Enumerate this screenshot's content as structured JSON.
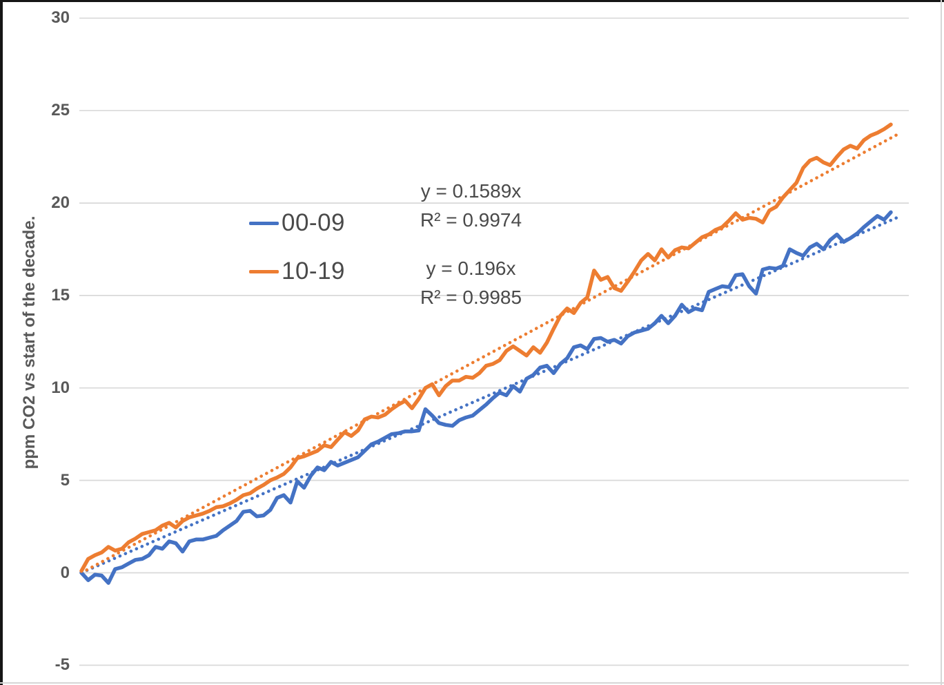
{
  "chart_data": {
    "type": "line",
    "title": "",
    "y_axis": {
      "label": "ppm CO2 vs start of the decade.",
      "ticks": [
        30,
        25,
        20,
        15,
        10,
        5,
        0,
        -5
      ],
      "min": -5,
      "max": 30,
      "grid": true
    },
    "x_axis": {
      "label": "",
      "min": 0,
      "max": 120,
      "tick_labels_shown": false
    },
    "legend_position": "inside-upper-left",
    "series": [
      {
        "name": "00-09",
        "color": "#4472C4",
        "line_style": "solid",
        "values": [
          0,
          -0.4,
          -0.1,
          -0.15,
          -0.55,
          0.2,
          0.3,
          0.5,
          0.7,
          0.75,
          0.95,
          1.4,
          1.3,
          1.7,
          1.6,
          1.15,
          1.7,
          1.8,
          1.8,
          1.9,
          2.0,
          2.3,
          2.55,
          2.8,
          3.3,
          3.35,
          3.05,
          3.1,
          3.4,
          4.05,
          4.2,
          3.8,
          4.95,
          4.6,
          5.25,
          5.7,
          5.55,
          6.0,
          5.8,
          5.95,
          6.1,
          6.25,
          6.6,
          6.95,
          7.1,
          7.3,
          7.5,
          7.55,
          7.65,
          7.65,
          7.7,
          8.85,
          8.5,
          8.1,
          8.0,
          7.95,
          8.25,
          8.4,
          8.5,
          8.8,
          9.1,
          9.45,
          9.75,
          9.6,
          10.1,
          9.8,
          10.5,
          10.7,
          11.1,
          11.2,
          10.8,
          11.3,
          11.6,
          12.2,
          12.3,
          12.1,
          12.65,
          12.7,
          12.5,
          12.6,
          12.4,
          12.8,
          13.0,
          13.1,
          13.2,
          13.5,
          13.9,
          13.5,
          13.9,
          14.5,
          14.1,
          14.3,
          14.2,
          15.2,
          15.35,
          15.5,
          15.45,
          16.1,
          16.15,
          15.5,
          15.1,
          16.4,
          16.5,
          16.45,
          16.6,
          17.5,
          17.3,
          17.15,
          17.6,
          17.8,
          17.5,
          18.0,
          18.3,
          17.9,
          18.1,
          18.35,
          18.7,
          19.0,
          19.3,
          19.1,
          19.5
        ]
      },
      {
        "name": "10-19",
        "color": "#ED7D31",
        "line_style": "solid",
        "values": [
          0.1,
          0.75,
          0.95,
          1.1,
          1.4,
          1.2,
          1.3,
          1.65,
          1.85,
          2.1,
          2.2,
          2.3,
          2.55,
          2.7,
          2.45,
          2.8,
          3.0,
          3.1,
          3.2,
          3.35,
          3.55,
          3.6,
          3.75,
          3.95,
          4.2,
          4.3,
          4.55,
          4.75,
          5.0,
          5.15,
          5.35,
          5.7,
          6.2,
          6.3,
          6.45,
          6.6,
          6.9,
          6.8,
          7.2,
          7.6,
          7.4,
          7.7,
          8.3,
          8.45,
          8.4,
          8.55,
          8.85,
          9.1,
          9.3,
          8.9,
          9.4,
          10.0,
          10.2,
          9.6,
          10.1,
          10.4,
          10.4,
          10.6,
          10.55,
          10.8,
          11.2,
          11.3,
          11.5,
          12.0,
          12.25,
          12.0,
          11.75,
          12.2,
          11.9,
          12.45,
          13.2,
          13.9,
          14.3,
          14.05,
          14.6,
          14.9,
          16.35,
          15.85,
          16.0,
          15.4,
          15.25,
          15.75,
          16.3,
          16.9,
          17.25,
          16.9,
          17.5,
          17.05,
          17.45,
          17.6,
          17.55,
          17.85,
          18.15,
          18.3,
          18.55,
          18.7,
          19.05,
          19.45,
          19.1,
          19.2,
          19.15,
          18.95,
          19.6,
          19.8,
          20.3,
          20.7,
          21.1,
          21.9,
          22.3,
          22.45,
          22.2,
          22.05,
          22.5,
          22.9,
          23.1,
          22.95,
          23.4,
          23.65,
          23.8,
          24.0,
          24.25
        ]
      },
      {
        "name": "Linear (00-09)",
        "color": "#4472C4",
        "line_style": "dotted",
        "slope": 0.1589,
        "equation": "y = 0.1589x",
        "r2_label": "R² = 0.9974"
      },
      {
        "name": "Linear (10-19)",
        "color": "#ED7D31",
        "line_style": "dotted",
        "slope": 0.196,
        "equation": "y = 0.196x",
        "r2_label": "R² = 0.9985"
      }
    ]
  }
}
